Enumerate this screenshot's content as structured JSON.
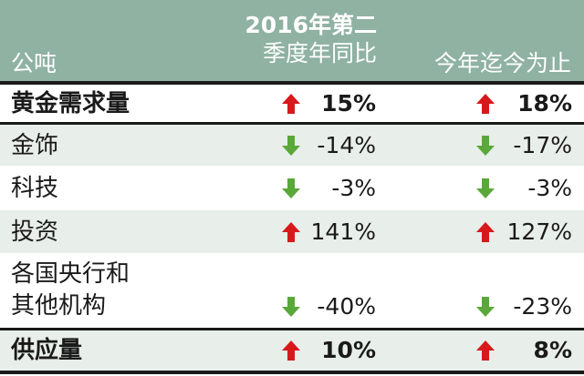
{
  "header": {
    "unit_label": "公吨",
    "col1_line1": "2016年第二",
    "col1_line2": "季度年同比",
    "col2_label": "今年迄今为止"
  },
  "rows": [
    {
      "label": "黄金需求量",
      "bold": true,
      "q2_dir": "up",
      "q2_value": "15%",
      "ytd_dir": "up",
      "ytd_value": "18%"
    },
    {
      "label": "金饰",
      "bold": false,
      "q2_dir": "down",
      "q2_value": "-14%",
      "ytd_dir": "down",
      "ytd_value": "-17%"
    },
    {
      "label": "科技",
      "bold": false,
      "q2_dir": "down",
      "q2_value": "-3%",
      "ytd_dir": "down",
      "ytd_value": "-3%"
    },
    {
      "label": "投资",
      "bold": false,
      "q2_dir": "up",
      "q2_value": "141%",
      "ytd_dir": "up",
      "ytd_value": "127%"
    },
    {
      "label_line1": "各国央行和",
      "label_line2": "其他机构",
      "bold": false,
      "q2_dir": "down",
      "q2_value": "-40%",
      "ytd_dir": "down",
      "ytd_value": "-23%"
    },
    {
      "label": "供应量",
      "bold": true,
      "q2_dir": "up",
      "q2_value": "10%",
      "ytd_dir": "up",
      "ytd_value": "8%"
    }
  ],
  "colors": {
    "header_bg": "#8fb2a2",
    "row_shade": "#e8eeea",
    "up_arrow": "#d7191c",
    "down_arrow": "#5aa83a"
  }
}
